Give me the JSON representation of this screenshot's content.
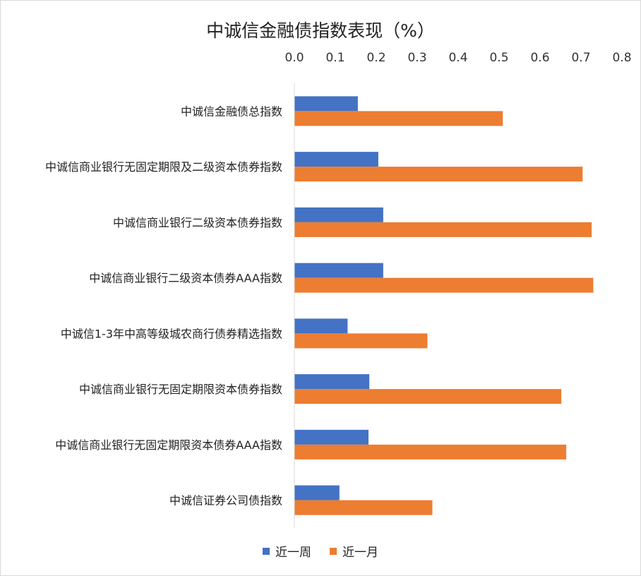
{
  "chart_data": {
    "type": "bar",
    "orientation": "horizontal",
    "title": "中诚信金融债指数表现（%）",
    "xlim": [
      0,
      0.8
    ],
    "xticks": [
      "0.0",
      "0.1",
      "0.2",
      "0.3",
      "0.4",
      "0.5",
      "0.6",
      "0.7",
      "0.8"
    ],
    "x_axis_position": "top",
    "categories": [
      "中诚信金融债总指数",
      "中诚信商业银行无固定期限及二级资本债券指数",
      "中诚信商业银行二级资本债券指数",
      "中诚信商业银行二级资本债券AAA指数",
      "中诚信1-3年中高等级城农商行债券精选指数",
      "中诚信商业银行无固定期限资本债券指数",
      "中诚信商业银行无固定期限资本债券AAA指数",
      "中诚信证券公司债指数"
    ],
    "series": [
      {
        "name": "近一周",
        "color": "#4472c4",
        "values": [
          0.155,
          0.205,
          0.217,
          0.217,
          0.13,
          0.183,
          0.181,
          0.11
        ]
      },
      {
        "name": "近一月",
        "color": "#ed7d31",
        "values": [
          0.509,
          0.704,
          0.726,
          0.73,
          0.325,
          0.652,
          0.664,
          0.337
        ]
      }
    ],
    "grid": false,
    "legend_position": "bottom"
  }
}
